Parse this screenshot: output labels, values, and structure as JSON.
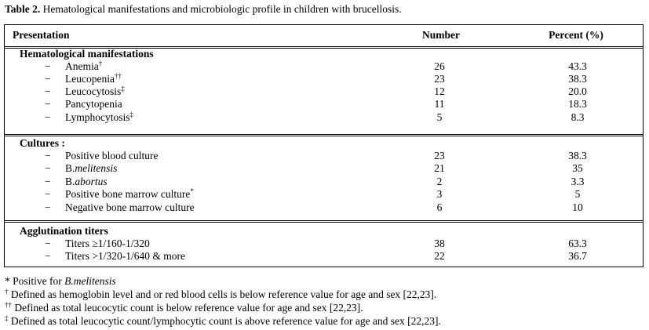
{
  "caption": {
    "label": "Table 2.",
    "text": " Hematological  manifestations  and microbiologic profile in children with brucellosis."
  },
  "columns": {
    "presentation": "Presentation",
    "number": "Number",
    "percent": "Percent (%)"
  },
  "dash": "−",
  "sections": {
    "hematological": {
      "title": "Hematological manifestations",
      "rows": [
        {
          "label": "Anemia",
          "sup": "†",
          "number": "26",
          "percent": "43.3"
        },
        {
          "label": "Leucopenia",
          "sup": "††",
          "number": "23",
          "percent": "38.3"
        },
        {
          "label": "Leucocytosis",
          "sup": "‡",
          "number": "12",
          "percent": "20.0"
        },
        {
          "label": "Pancytopenia",
          "sup": "",
          "number": "11",
          "percent": "18.3"
        },
        {
          "label": "Lymphocytosis",
          "sup": "‡",
          "number": "5",
          "percent": "8.3"
        }
      ]
    },
    "cultures": {
      "title": "Cultures :",
      "rows": [
        {
          "label": "Positive blood culture",
          "number": "23",
          "percent": "38.3"
        },
        {
          "label_prefix": "B.",
          "label_italic": "melitensis",
          "number": "21",
          "percent": "35"
        },
        {
          "label_prefix": "B.",
          "label_italic": "abortus",
          "number": "2",
          "percent": "3.3"
        },
        {
          "label": "Positive bone marrow culture",
          "sup": "*",
          "number": "3",
          "percent": "5"
        },
        {
          "label": "Negative bone marrow culture",
          "number": "6",
          "percent": "10"
        }
      ]
    },
    "agglutination": {
      "title": "Agglutination titers",
      "rows": [
        {
          "label": "Titers ≥1/160-1/320",
          "number": "38",
          "percent": "63.3"
        },
        {
          "label": "Titers >1/320-1/640 & more",
          "number": "22",
          "percent": "36.7"
        }
      ]
    }
  },
  "footnotes": {
    "f1_prefix": "* Positive for ",
    "f1_italic": "B.melitensis",
    "f2_sup": "†",
    "f2_text": " Defined as hemoglobin level and or red blood cells is below reference value for age and sex [22,23].",
    "f3_sup": "††",
    "f3_text": " Defined as total leucocytic count is below reference value for age and sex [22,23].",
    "f4_sup": "‡",
    "f4_text": " Defined as total leucocytic count/lymphocytic count is above reference value for age and sex [22,23]."
  }
}
